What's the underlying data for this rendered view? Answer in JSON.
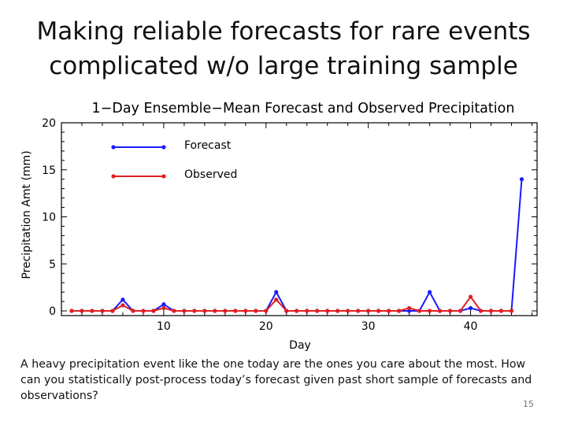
{
  "slide": {
    "title_line1": "Making reliable forecasts for rare events",
    "title_line2": "complicated w/o large training sample",
    "caption": "A heavy precipitation event like the one today are the ones you care about the most. How can you statistically post-process today’s forecast given past short sample of forecasts and observations?",
    "number": "15"
  },
  "chart_data": {
    "type": "line",
    "title": "1−Day Ensemble−Mean Forecast and Observed Precipitation",
    "xlabel": "Day",
    "ylabel": "Precipitation Amt (mm)",
    "xlim": [
      0,
      46.5
    ],
    "ylim": [
      -0.5,
      20
    ],
    "xticks": [
      10,
      20,
      30,
      40
    ],
    "yticks": [
      0,
      5,
      10,
      15,
      20
    ],
    "grid": false,
    "legend_position": "top-left",
    "x": [
      1,
      2,
      3,
      4,
      5,
      6,
      7,
      8,
      9,
      10,
      11,
      12,
      13,
      14,
      15,
      16,
      17,
      18,
      19,
      20,
      21,
      22,
      23,
      24,
      25,
      26,
      27,
      28,
      29,
      30,
      31,
      32,
      33,
      34,
      35,
      36,
      37,
      38,
      39,
      40,
      41,
      42,
      43,
      44,
      45
    ],
    "series": [
      {
        "name": "Forecast",
        "color": "#1a1aff",
        "values": [
          0,
          0,
          0,
          0,
          0,
          1.2,
          0,
          0,
          0,
          0.7,
          0,
          0,
          0,
          0,
          0,
          0,
          0,
          0,
          0,
          0,
          2.0,
          0,
          0,
          0,
          0,
          0,
          0,
          0,
          0,
          0,
          0,
          0,
          0,
          0,
          0,
          2.0,
          0,
          0,
          0,
          0.3,
          0,
          0,
          0,
          0,
          14.0
        ]
      },
      {
        "name": "Observed",
        "color": "#e02020",
        "values": [
          0,
          0,
          0,
          0,
          0,
          0.6,
          0,
          0,
          0,
          0.3,
          0,
          0,
          0,
          0,
          0,
          0,
          0,
          0,
          0,
          0,
          1.2,
          0,
          0,
          0,
          0,
          0,
          0,
          0,
          0,
          0,
          0,
          0,
          0,
          0.3,
          0,
          0,
          0,
          0,
          0,
          1.5,
          0,
          0,
          0,
          0,
          null
        ]
      }
    ]
  }
}
